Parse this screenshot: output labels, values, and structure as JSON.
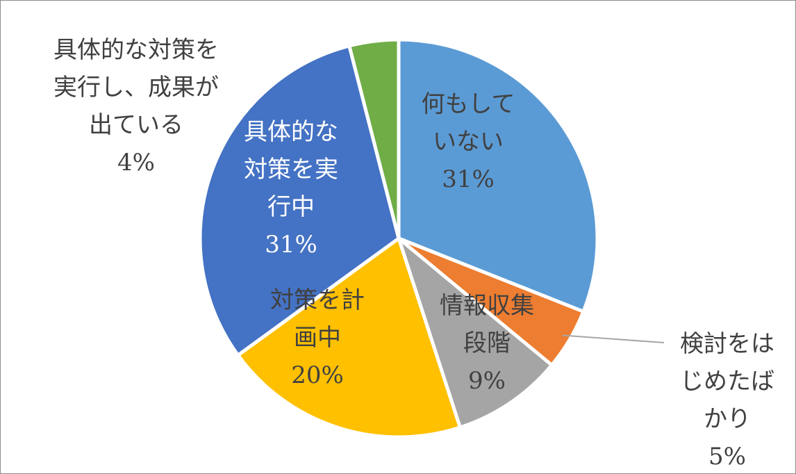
{
  "chart_data": {
    "type": "pie",
    "title": "",
    "slices": [
      {
        "label": [
          "何もして",
          "いない"
        ],
        "percent_label": "31%",
        "value": 31,
        "color": "#5b9bd5",
        "text_color": "#404040"
      },
      {
        "label": [
          "検討をは",
          "じめたば",
          "かり"
        ],
        "percent_label": "5%",
        "value": 5,
        "color": "#ed7d31",
        "text_color": "#404040"
      },
      {
        "label": [
          "情報収集",
          "段階"
        ],
        "percent_label": "9%",
        "value": 9,
        "color": "#a5a5a5",
        "text_color": "#404040"
      },
      {
        "label": [
          "対策を計",
          "画中"
        ],
        "percent_label": "20%",
        "value": 20,
        "color": "#ffc000",
        "text_color": "#404040"
      },
      {
        "label": [
          "具体的な",
          "対策を実",
          "行中"
        ],
        "percent_label": "31%",
        "value": 31,
        "color": "#4472c4",
        "text_color": "#ffffff"
      },
      {
        "label": [
          "具体的な対策を",
          "実行し、成果が",
          "出ている"
        ],
        "percent_label": "4%",
        "value": 4,
        "color": "#70ad47",
        "text_color": "#404040"
      }
    ],
    "start_angle": "12 o'clock",
    "direction": "clockwise",
    "slice_border_color": "#ffffff"
  }
}
